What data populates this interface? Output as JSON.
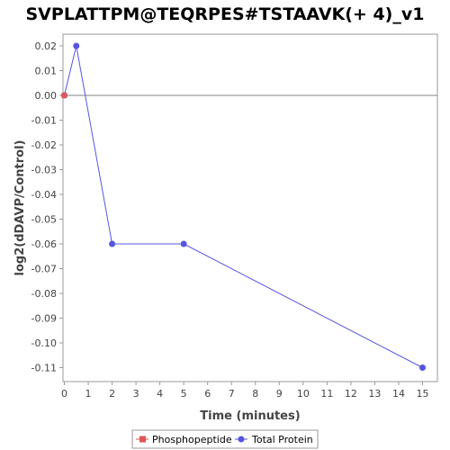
{
  "chart_data": {
    "type": "line",
    "title": "SVPLATTPM@TEQRPES#TSTAAVK(+ 4)_v1",
    "xlabel": "Time (minutes)",
    "ylabel": "log2(dDAVP/Control)",
    "xlim": [
      0,
      15.6
    ],
    "ylim": [
      -0.115,
      0.025
    ],
    "xticks": [
      0,
      1,
      2,
      3,
      4,
      5,
      6,
      7,
      8,
      9,
      10,
      11,
      12,
      13,
      14,
      15
    ],
    "yticks": [
      0.02,
      0.01,
      0.0,
      -0.01,
      -0.02,
      -0.03,
      -0.04,
      -0.05,
      -0.06,
      -0.07,
      -0.08,
      -0.09,
      -0.1,
      -0.11
    ],
    "ytick_labels": [
      "0.02",
      "0.01",
      "0.00",
      "-0.01",
      "-0.02",
      "-0.03",
      "-0.04",
      "-0.05",
      "-0.06",
      "-0.07",
      "-0.08",
      "-0.09",
      "-0.10",
      "-0.11"
    ],
    "zero_line": 0,
    "grid": false,
    "legend_position": "bottom-center",
    "series": [
      {
        "name": "Phosphopeptide",
        "color": "#e05555",
        "marker": "square",
        "x": [
          0
        ],
        "y": [
          0.0
        ]
      },
      {
        "name": "Total Protein",
        "color": "#5555e0",
        "marker": "circle",
        "x": [
          0,
          0.5,
          2,
          5,
          15
        ],
        "y": [
          0.0,
          0.02,
          -0.06,
          -0.06,
          -0.11
        ]
      }
    ]
  }
}
